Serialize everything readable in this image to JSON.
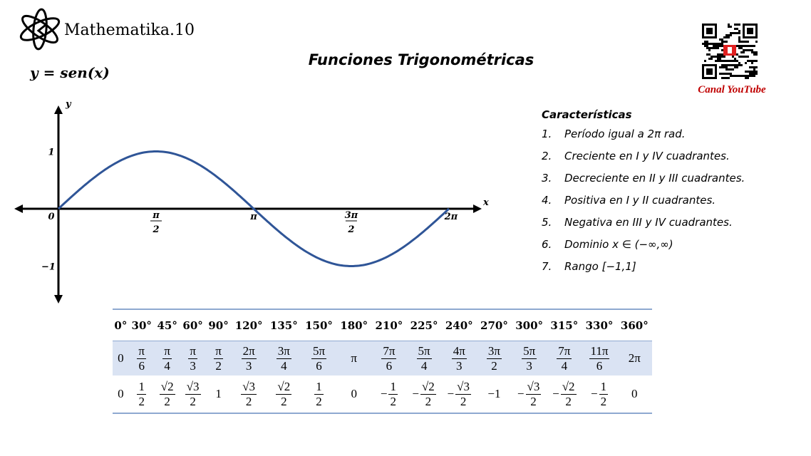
{
  "brand": {
    "name": "Mathematika.10",
    "logo_icon": "atom-logo-icon"
  },
  "formula": "y = sen(x)",
  "title": "Funciones Trigonométricas",
  "youtube": {
    "label": "Canal YouTube",
    "color": "#c00000",
    "qr_icon": "qr-code-icon"
  },
  "characteristics": {
    "heading": "Características",
    "items": [
      {
        "n": "1.",
        "text": "Período igual a 2π rad."
      },
      {
        "n": "2.",
        "text": "Creciente en I y IV cuadrantes."
      },
      {
        "n": "3.",
        "text": "Decreciente en II y III cuadrantes."
      },
      {
        "n": "4.",
        "text": "Positiva en I y II cuadrantes."
      },
      {
        "n": "5.",
        "text": "Negativa en III y IV cuadrantes."
      },
      {
        "n": "6.",
        "text": "Dominio x ∈ (−∞,∞)"
      },
      {
        "n": "7.",
        "text": "Rango [−1,1]"
      }
    ]
  },
  "plot": {
    "function": "sin",
    "x_domain": [
      0,
      6.2832
    ],
    "curve_color": "#2f5597",
    "axis_labels": {
      "x": "x",
      "y": "y"
    },
    "x_ticks": [
      {
        "label": "0"
      },
      {
        "num": "π",
        "den": "2"
      },
      {
        "label": "π"
      },
      {
        "num": "3π",
        "den": "2"
      },
      {
        "label": "2π"
      }
    ],
    "y_ticks": [
      {
        "label": "1"
      },
      {
        "label": "−1"
      }
    ]
  },
  "table": {
    "degrees": [
      "0°",
      "30°",
      "45°",
      "60°",
      "90°",
      "120°",
      "135°",
      "150°",
      "180°",
      "210°",
      "225°",
      "240°",
      "270°",
      "300°",
      "315°",
      "330°",
      "360°"
    ],
    "radians": [
      {
        "v": "0"
      },
      {
        "num": "π",
        "den": "6"
      },
      {
        "num": "π",
        "den": "4"
      },
      {
        "num": "π",
        "den": "3"
      },
      {
        "num": "π",
        "den": "2"
      },
      {
        "num": "2π",
        "den": "3"
      },
      {
        "num": "3π",
        "den": "4"
      },
      {
        "num": "5π",
        "den": "6"
      },
      {
        "v": "π"
      },
      {
        "num": "7π",
        "den": "6"
      },
      {
        "num": "5π",
        "den": "4"
      },
      {
        "num": "4π",
        "den": "3"
      },
      {
        "num": "3π",
        "den": "2"
      },
      {
        "num": "5π",
        "den": "3"
      },
      {
        "num": "7π",
        "den": "4"
      },
      {
        "num": "11π",
        "den": "6"
      },
      {
        "v": "2π"
      }
    ],
    "sine": [
      {
        "v": "0"
      },
      {
        "num": "1",
        "den": "2"
      },
      {
        "num": "√2",
        "den": "2"
      },
      {
        "num": "√3",
        "den": "2"
      },
      {
        "v": "1"
      },
      {
        "num": "√3",
        "den": "2"
      },
      {
        "num": "√2",
        "den": "2"
      },
      {
        "num": "1",
        "den": "2"
      },
      {
        "v": "0"
      },
      {
        "sign": "−",
        "num": "1",
        "den": "2"
      },
      {
        "sign": "−",
        "num": "√2",
        "den": "2"
      },
      {
        "sign": "−",
        "num": "√3",
        "den": "2"
      },
      {
        "v": "−1"
      },
      {
        "sign": "−",
        "num": "√3",
        "den": "2"
      },
      {
        "sign": "−",
        "num": "√2",
        "den": "2"
      },
      {
        "sign": "−",
        "num": "1",
        "den": "2"
      },
      {
        "v": "0"
      }
    ],
    "header_line_color": "#8ea9d0",
    "band_color": "#dae3f3"
  }
}
